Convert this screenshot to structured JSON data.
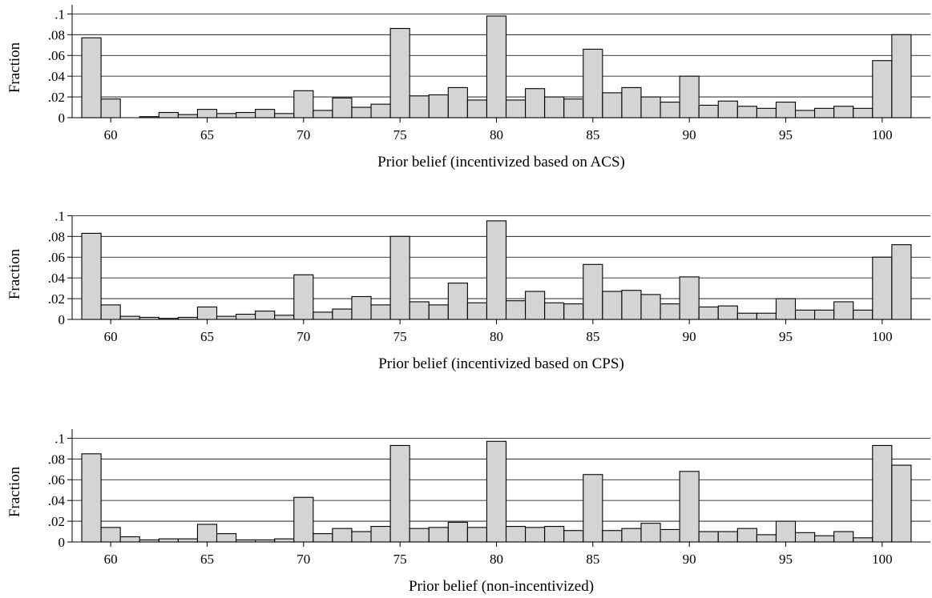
{
  "chart_data": [
    {
      "type": "bar",
      "xlabel": "Prior belief (incentivized based on ACS)",
      "ylabel": "Fraction",
      "ylim": [
        0,
        0.1
      ],
      "yticks": [
        0,
        0.02,
        0.04,
        0.06,
        0.08,
        0.1
      ],
      "ytick_labels": [
        "0",
        ".02",
        ".04",
        ".06",
        ".08",
        ".1"
      ],
      "xlim": [
        58,
        102.5
      ],
      "xticks": [
        60,
        65,
        70,
        75,
        80,
        85,
        90,
        95,
        100
      ],
      "xtick_labels": [
        "60",
        "65",
        "70",
        "75",
        "80",
        "85",
        "90",
        "95",
        "100"
      ],
      "grid": true,
      "bin_start": 59,
      "bin_width": 1,
      "values": [
        0.077,
        0.018,
        0,
        0.001,
        0.005,
        0.003,
        0.008,
        0.004,
        0.005,
        0.008,
        0.004,
        0.026,
        0.007,
        0.019,
        0.01,
        0.013,
        0.086,
        0.021,
        0.022,
        0.029,
        0.017,
        0.098,
        0.017,
        0.028,
        0.02,
        0.018,
        0.066,
        0.024,
        0.029,
        0.02,
        0.015,
        0.04,
        0.012,
        0.016,
        0.011,
        0.009,
        0.015,
        0.007,
        0.009,
        0.011,
        0.009,
        0.055,
        0.08
      ]
    },
    {
      "type": "bar",
      "xlabel": "Prior belief (incentivized based on CPS)",
      "ylabel": "Fraction",
      "ylim": [
        0,
        0.1
      ],
      "yticks": [
        0,
        0.02,
        0.04,
        0.06,
        0.08,
        0.1
      ],
      "ytick_labels": [
        "0",
        ".02",
        ".04",
        ".06",
        ".08",
        ".1"
      ],
      "xlim": [
        58,
        102.5
      ],
      "xticks": [
        60,
        65,
        70,
        75,
        80,
        85,
        90,
        95,
        100
      ],
      "xtick_labels": [
        "60",
        "65",
        "70",
        "75",
        "80",
        "85",
        "90",
        "95",
        "100"
      ],
      "grid": true,
      "bin_start": 59,
      "bin_width": 1,
      "values": [
        0.083,
        0.014,
        0.003,
        0.002,
        0.001,
        0.002,
        0.012,
        0.003,
        0.005,
        0.008,
        0.004,
        0.043,
        0.007,
        0.01,
        0.022,
        0.014,
        0.08,
        0.017,
        0.014,
        0.035,
        0.016,
        0.095,
        0.018,
        0.027,
        0.016,
        0.015,
        0.053,
        0.027,
        0.028,
        0.024,
        0.015,
        0.041,
        0.012,
        0.013,
        0.006,
        0.006,
        0.02,
        0.009,
        0.009,
        0.017,
        0.009,
        0.06,
        0.072
      ]
    },
    {
      "type": "bar",
      "xlabel": "Prior belief (non-incentivized)",
      "ylabel": "Fraction",
      "ylim": [
        0,
        0.1
      ],
      "yticks": [
        0,
        0.02,
        0.04,
        0.06,
        0.08,
        0.1
      ],
      "ytick_labels": [
        "0",
        ".02",
        ".04",
        ".06",
        ".08",
        ".1"
      ],
      "xlim": [
        58,
        102.5
      ],
      "xticks": [
        60,
        65,
        70,
        75,
        80,
        85,
        90,
        95,
        100
      ],
      "xtick_labels": [
        "60",
        "65",
        "70",
        "75",
        "80",
        "85",
        "90",
        "95",
        "100"
      ],
      "grid": true,
      "bin_start": 59,
      "bin_width": 1,
      "values": [
        0.085,
        0.014,
        0.005,
        0.002,
        0.003,
        0.003,
        0.017,
        0.008,
        0.002,
        0.002,
        0.003,
        0.043,
        0.008,
        0.013,
        0.01,
        0.015,
        0.093,
        0.013,
        0.014,
        0.019,
        0.014,
        0.097,
        0.015,
        0.014,
        0.015,
        0.011,
        0.065,
        0.011,
        0.013,
        0.018,
        0.012,
        0.068,
        0.01,
        0.01,
        0.013,
        0.007,
        0.02,
        0.009,
        0.006,
        0.01,
        0.004,
        0.093,
        0.074
      ]
    }
  ]
}
